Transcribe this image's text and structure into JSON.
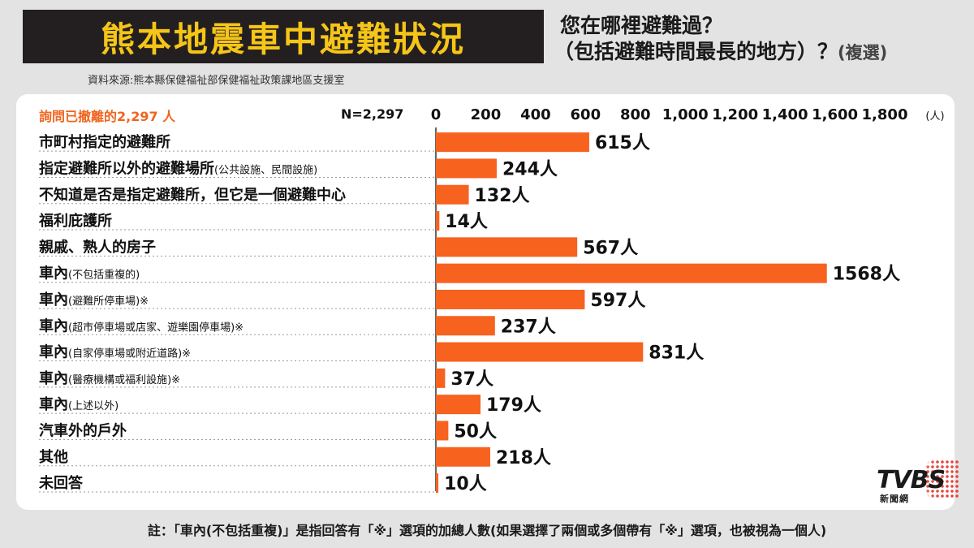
{
  "title": "熊本地震車中避難狀況",
  "question_line1": "您在哪裡避難過？",
  "question_line2": "（包括避難時間最長的地方）？",
  "question_multi": "(複選)",
  "source": "資料來源:熊本縣保健福祉部保健福祉政策課地區支援室",
  "subtitle": "詢問已撤離的2,297 人",
  "n_label": "N=2,297",
  "note": "註：「車內(不包括重複)」是指回答有「※」選項的加總人數(如果選擇了兩個或多個帶有「※」選項，也被視為一個人)",
  "logo": {
    "text": "TVBS",
    "sub": "新聞網"
  },
  "colors": {
    "bar": "#f7621f",
    "title_bg": "#231f20",
    "title_fg": "#f5c518",
    "subtitle": "#f0641e"
  },
  "chart_data": {
    "type": "bar",
    "orientation": "horizontal",
    "xlim": [
      0,
      1800
    ],
    "ticks": [
      0,
      200,
      400,
      600,
      800,
      1000,
      1200,
      1400,
      1600,
      1800
    ],
    "tick_labels": [
      "0",
      "200",
      "400",
      "600",
      "800",
      "1,000",
      "1,200",
      "1,400",
      "1,600",
      "1,800"
    ],
    "unit": "(人)",
    "value_suffix": "人",
    "categories": [
      {
        "main": "市町村指定的避難所",
        "sub": ""
      },
      {
        "main": "指定避難所以外的避難場所",
        "sub": "(公共設施、民間設施)"
      },
      {
        "main": "不知道是否是指定避難所，但它是一個避難中心",
        "sub": ""
      },
      {
        "main": "福利庇護所",
        "sub": ""
      },
      {
        "main": "親戚、熟人的房子",
        "sub": ""
      },
      {
        "main": "車內",
        "sub": "(不包括重複的)"
      },
      {
        "main": "車內",
        "sub": "(避難所停車場)※"
      },
      {
        "main": "車內",
        "sub": "(超市停車場或店家、遊樂園停車場)※"
      },
      {
        "main": "車內",
        "sub": "(自家停車場或附近道路)※"
      },
      {
        "main": "車內",
        "sub": "(醫療機構或福利設施)※"
      },
      {
        "main": "車內",
        "sub": "(上述以外)"
      },
      {
        "main": "汽車外的戶外",
        "sub": ""
      },
      {
        "main": "其他",
        "sub": ""
      },
      {
        "main": "未回答",
        "sub": ""
      }
    ],
    "values": [
      615,
      244,
      132,
      14,
      567,
      1568,
      597,
      237,
      831,
      37,
      179,
      50,
      218,
      10
    ]
  }
}
